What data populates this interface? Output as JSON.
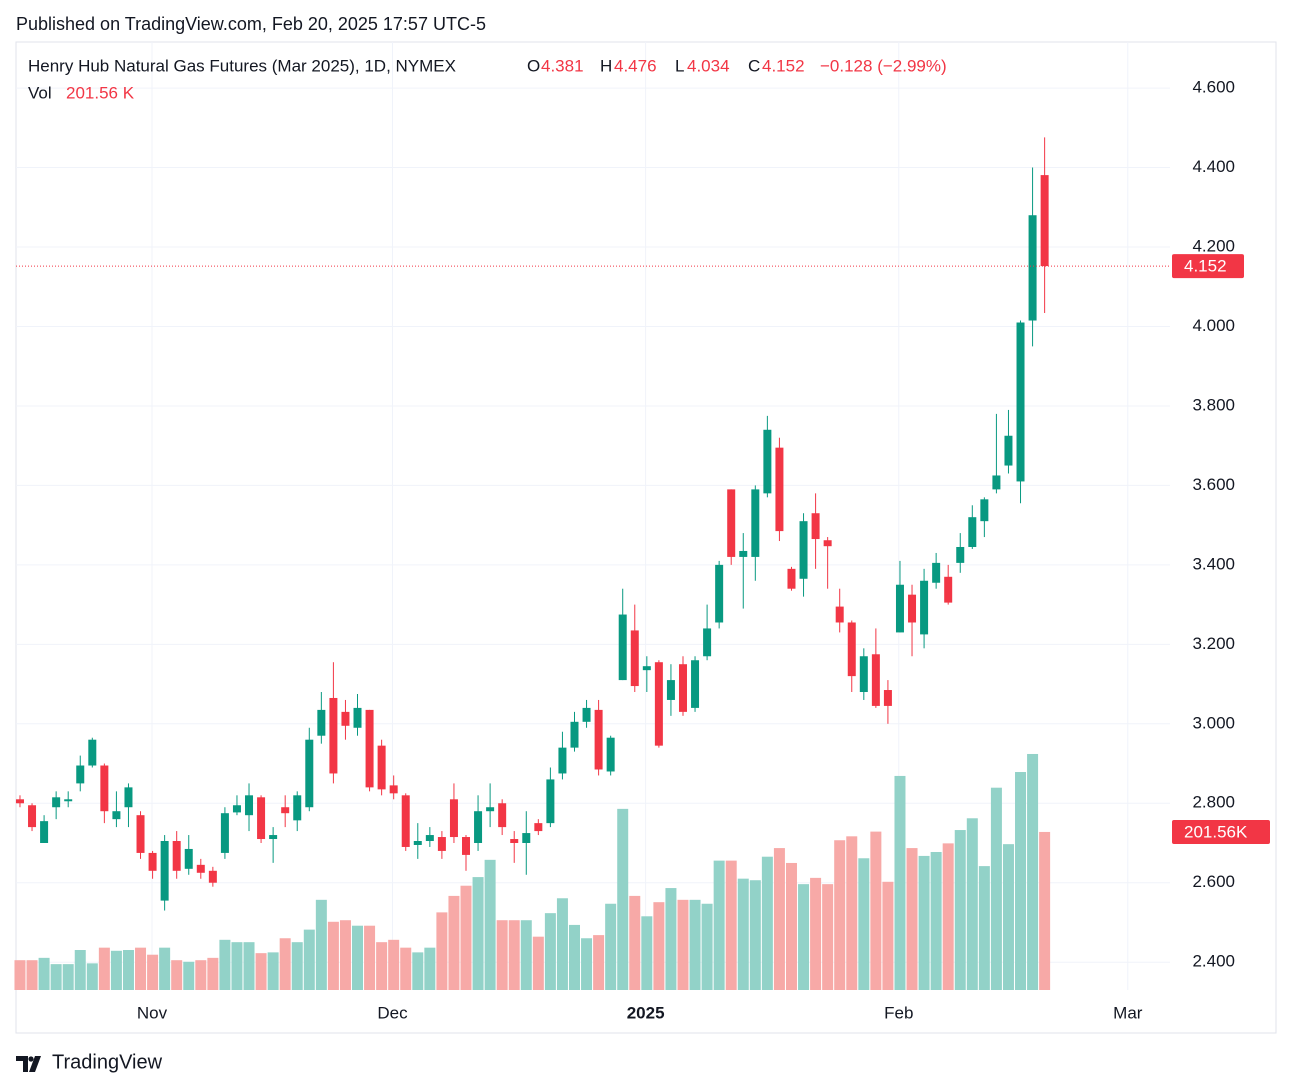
{
  "chart_data": {
    "type": "candlestick",
    "published": "Published on TradingView.com, Feb 20, 2025 17:57 UTC-5",
    "symbol": "Henry Hub Natural Gas Futures (Mar 2025), 1D, NYMEX",
    "open_letter": "O",
    "high_letter": "H",
    "low_letter": "L",
    "close_letter": "C",
    "change": "−0.128 (−2.99%)",
    "volume_title": "Vol",
    "volume_readout": "201.56 K",
    "volume_tag": "201.56K",
    "logo": "TradingView",
    "up_color": "#089981",
    "down_color": "#f23645",
    "volume_up_color": "#92d2c8",
    "volume_down_color": "#f7a9a7",
    "grid": true,
    "categories": [
      null,
      null,
      null,
      null,
      null,
      null,
      null,
      null,
      null,
      null,
      null,
      null,
      null,
      null,
      null,
      null,
      null,
      null,
      null,
      null,
      null,
      null,
      null,
      null,
      null,
      null,
      null,
      null,
      null,
      null,
      null,
      null,
      null,
      null,
      null,
      null,
      null,
      null,
      null,
      null,
      null,
      null,
      null,
      null,
      null,
      null,
      null,
      null,
      null,
      null,
      null,
      null,
      null,
      null,
      null,
      null,
      null,
      null,
      null,
      null,
      null,
      null,
      null,
      null,
      null,
      null,
      null,
      null,
      null,
      null,
      null,
      null,
      null,
      null,
      null,
      null,
      null,
      null,
      null,
      null,
      null,
      null,
      null,
      null,
      null,
      null
    ],
    "open": [
      2.81,
      2.795,
      2.7,
      2.79,
      2.805,
      2.85,
      2.895,
      2.895,
      2.76,
      2.79,
      2.77,
      2.675,
      2.555,
      2.705,
      2.635,
      2.645,
      2.63,
      2.675,
      2.777,
      2.77,
      2.815,
      2.71,
      2.79,
      2.757,
      2.79,
      2.97,
      3.065,
      3.03,
      2.99,
      3.035,
      2.945,
      2.845,
      2.82,
      2.695,
      2.705,
      2.715,
      2.81,
      2.715,
      2.7,
      2.78,
      2.8,
      2.71,
      2.7,
      2.75,
      2.75,
      2.875,
      2.94,
      3.005,
      3.035,
      2.88,
      3.11,
      3.235,
      3.135,
      3.155,
      3.06,
      3.15,
      3.04,
      3.17,
      3.255,
      3.59,
      3.42,
      3.42,
      3.58,
      3.695,
      3.39,
      3.365,
      3.53,
      3.462,
      3.295,
      3.255,
      3.08,
      3.175,
      3.085,
      3.23,
      3.325,
      3.225,
      3.355,
      3.37,
      3.405,
      3.445,
      3.51,
      3.59,
      3.65,
      3.61,
      4.015,
      4.381
    ],
    "high": [
      2.82,
      2.8,
      2.77,
      2.83,
      2.83,
      2.92,
      2.965,
      2.9,
      2.83,
      2.85,
      2.78,
      2.68,
      2.72,
      2.73,
      2.72,
      2.66,
      2.64,
      2.79,
      2.82,
      2.85,
      2.82,
      2.74,
      2.82,
      2.83,
      2.99,
      3.08,
      3.155,
      3.06,
      3.075,
      3.035,
      2.96,
      2.87,
      2.825,
      2.75,
      2.74,
      2.73,
      2.85,
      2.72,
      2.82,
      2.85,
      2.81,
      2.73,
      2.78,
      2.76,
      2.89,
      2.98,
      3.03,
      3.06,
      3.06,
      2.97,
      3.34,
      3.3,
      3.17,
      3.16,
      3.15,
      3.17,
      3.17,
      3.3,
      3.41,
      3.59,
      3.48,
      3.6,
      3.775,
      3.72,
      3.395,
      3.53,
      3.58,
      3.47,
      3.34,
      3.26,
      3.19,
      3.24,
      3.11,
      3.41,
      3.35,
      3.39,
      3.43,
      3.4,
      3.48,
      3.55,
      3.57,
      3.78,
      3.79,
      4.015,
      4.4,
      4.476
    ],
    "low": [
      2.79,
      2.73,
      2.7,
      2.76,
      2.79,
      2.83,
      2.89,
      2.75,
      2.74,
      2.74,
      2.66,
      2.61,
      2.53,
      2.61,
      2.62,
      2.61,
      2.59,
      2.66,
      2.77,
      2.73,
      2.7,
      2.65,
      2.74,
      2.73,
      2.78,
      2.95,
      2.85,
      2.96,
      2.97,
      2.83,
      2.82,
      2.81,
      2.68,
      2.66,
      2.69,
      2.66,
      2.7,
      2.63,
      2.68,
      2.74,
      2.72,
      2.65,
      2.62,
      2.72,
      2.74,
      2.86,
      2.93,
      2.99,
      2.87,
      2.87,
      3.11,
      3.08,
      3.08,
      2.94,
      3.02,
      3.02,
      3.03,
      3.16,
      3.24,
      3.4,
      3.29,
      3.36,
      3.57,
      3.46,
      3.335,
      3.32,
      3.39,
      3.34,
      3.23,
      3.08,
      3.06,
      3.04,
      3.0,
      3.23,
      3.17,
      3.19,
      3.34,
      3.3,
      3.38,
      3.44,
      3.47,
      3.58,
      3.63,
      3.555,
      3.95,
      4.034
    ],
    "close": [
      2.8,
      2.74,
      2.755,
      2.815,
      2.81,
      2.895,
      2.96,
      2.78,
      2.78,
      2.84,
      2.675,
      2.63,
      2.705,
      2.63,
      2.685,
      2.625,
      2.6,
      2.775,
      2.795,
      2.82,
      2.71,
      2.72,
      2.775,
      2.82,
      2.96,
      3.035,
      2.875,
      2.995,
      3.04,
      2.84,
      2.835,
      2.825,
      2.69,
      2.705,
      2.72,
      2.68,
      2.715,
      2.67,
      2.78,
      2.79,
      2.74,
      2.7,
      2.725,
      2.73,
      2.86,
      2.94,
      3.005,
      3.04,
      2.885,
      2.965,
      3.275,
      3.095,
      3.145,
      2.945,
      3.11,
      3.03,
      3.16,
      3.24,
      3.4,
      3.42,
      3.435,
      3.59,
      3.74,
      3.485,
      3.34,
      3.51,
      3.465,
      3.447,
      3.255,
      3.12,
      3.17,
      3.045,
      3.045,
      3.35,
      3.255,
      3.36,
      3.405,
      3.305,
      3.445,
      3.52,
      3.565,
      3.625,
      3.725,
      4.01,
      4.28,
      4.152
    ],
    "volume": [
      38,
      38,
      41,
      33,
      33,
      51,
      34,
      54,
      50,
      51,
      54,
      45,
      54,
      38,
      36,
      38,
      41,
      64,
      61,
      61,
      47,
      48,
      66,
      61,
      77,
      115,
      87,
      89,
      82,
      82,
      61,
      64,
      54,
      48,
      54,
      99,
      120,
      133,
      144,
      166,
      89,
      89,
      89,
      68,
      98,
      117,
      83,
      66,
      70,
      110,
      231,
      120,
      94,
      112,
      130,
      115,
      115,
      110,
      165,
      165,
      142,
      140,
      170,
      181,
      162,
      135,
      143,
      135,
      191,
      196,
      168,
      202,
      138,
      273,
      181,
      171,
      176,
      187,
      204,
      219,
      158,
      258,
      186,
      278,
      301,
      201.56
    ],
    "xlim": [
      -0.33,
      95.4
    ],
    "xticks": [
      {
        "value": 10.95,
        "label": "Nov"
      },
      {
        "value": 30.9,
        "label": "Dec"
      },
      {
        "value": 51.9,
        "label": "2025"
      },
      {
        "value": 72.9,
        "label": "Feb"
      },
      {
        "value": 91.9,
        "label": "Mar"
      }
    ],
    "ylim": [
      2.33,
      4.716
    ],
    "yticks": [
      {
        "value": 2.4,
        "label": "2.400"
      },
      {
        "value": 2.6,
        "label": "2.600"
      },
      {
        "value": 2.8,
        "label": "2.800"
      },
      {
        "value": 3.0,
        "label": "3.000"
      },
      {
        "value": 3.2,
        "label": "3.200"
      },
      {
        "value": 3.4,
        "label": "3.400"
      },
      {
        "value": 3.6,
        "label": "3.600"
      },
      {
        "value": 3.8,
        "label": "3.800"
      },
      {
        "value": 4.0,
        "label": "4.000"
      },
      {
        "value": 4.2,
        "label": "4.200"
      },
      {
        "value": 4.4,
        "label": "4.400"
      },
      {
        "value": 4.6,
        "label": "4.600"
      }
    ],
    "volume_ylim": [
      0,
      1209
    ]
  }
}
